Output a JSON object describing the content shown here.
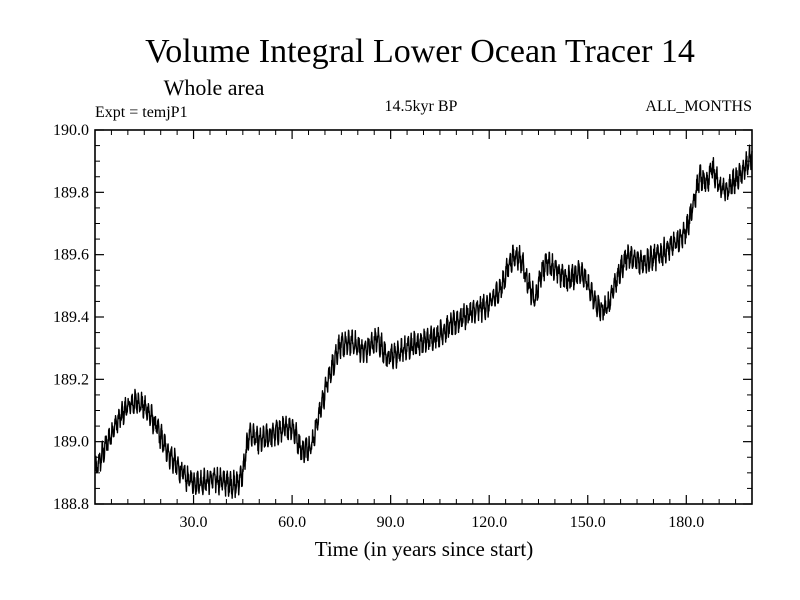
{
  "chart_data": {
    "type": "line",
    "title": "Volume Integral Lower Ocean Tracer 14",
    "subtitle": "Whole area",
    "annotations": {
      "left": "Expt = temjP1",
      "center": "14.5kyr BP",
      "right": "ALL_MONTHS"
    },
    "xlabel": "Time (in years since start)",
    "ylabel": "",
    "xlim": [
      0,
      200
    ],
    "ylim": [
      188.8,
      190.0
    ],
    "x_ticks": [
      30,
      60,
      90,
      120,
      150,
      180
    ],
    "x_tick_labels": [
      "30.0",
      "60.0",
      "90.0",
      "120.0",
      "150.0",
      "180.0"
    ],
    "y_ticks": [
      188.8,
      189.0,
      189.2,
      189.4,
      189.6,
      189.8,
      190.0
    ],
    "y_tick_labels": [
      "188.8",
      "189.0",
      "189.2",
      "189.4",
      "189.6",
      "189.8",
      "190.0"
    ],
    "grid": false,
    "series": [
      {
        "name": "Volume Integral Lower Ocean Tracer 14",
        "color": "#000000",
        "noise_amplitude": 0.03,
        "samples_per_year": 12,
        "x": [
          0,
          3,
          6,
          9,
          11,
          13,
          16,
          19,
          22,
          25,
          28,
          30,
          33,
          36,
          40,
          43,
          45,
          47,
          50,
          55,
          60,
          63,
          66,
          68,
          71,
          74,
          78,
          82,
          86,
          89,
          92,
          96,
          100,
          104,
          108,
          112,
          116,
          120,
          124,
          126,
          128,
          130,
          132,
          134,
          136,
          138,
          140,
          144,
          148,
          150,
          152,
          154,
          156,
          158,
          160,
          162,
          164,
          168,
          172,
          176,
          178,
          180,
          182,
          184,
          186,
          188,
          190,
          192,
          194,
          197,
          200
        ],
        "values": [
          188.9,
          188.98,
          189.05,
          189.1,
          189.12,
          189.13,
          189.1,
          189.04,
          188.97,
          188.92,
          188.88,
          188.87,
          188.87,
          188.88,
          188.87,
          188.86,
          188.9,
          189.03,
          189.0,
          189.03,
          189.05,
          188.97,
          188.99,
          189.08,
          189.2,
          189.3,
          189.32,
          189.29,
          189.33,
          189.27,
          189.28,
          189.31,
          189.32,
          189.34,
          189.37,
          189.4,
          189.42,
          189.44,
          189.5,
          189.57,
          189.6,
          189.58,
          189.5,
          189.45,
          189.55,
          189.58,
          189.55,
          189.52,
          189.55,
          189.5,
          189.45,
          189.42,
          189.43,
          189.5,
          189.55,
          189.6,
          189.58,
          189.58,
          189.6,
          189.63,
          189.65,
          189.68,
          189.75,
          189.85,
          189.83,
          189.88,
          189.82,
          189.8,
          189.83,
          189.86,
          189.92
        ]
      }
    ]
  }
}
